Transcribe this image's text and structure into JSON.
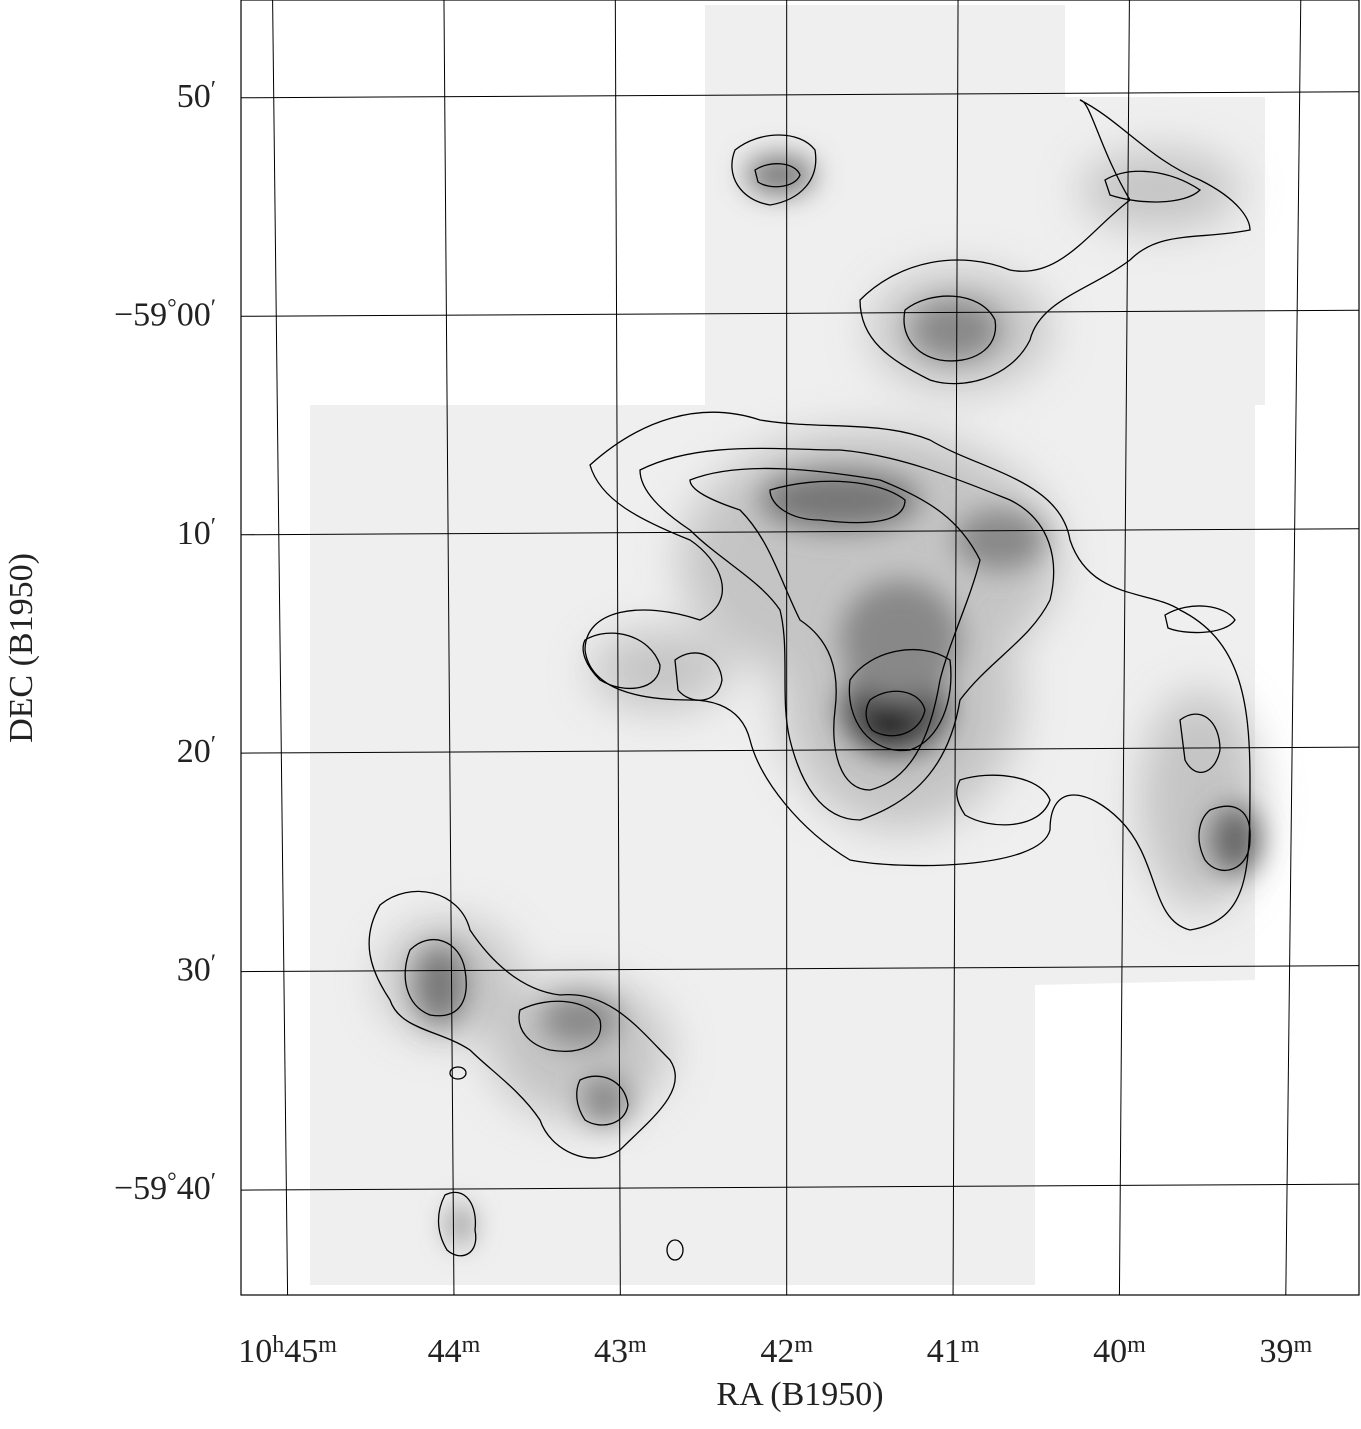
{
  "figure": {
    "x_label": "RA (B1950)",
    "y_label": "DEC (B1950)",
    "xlim": [
      45.28,
      38.56
    ],
    "ylim": [
      -58.761,
      -59.749
    ],
    "xticks": [
      {
        "value": 45,
        "parts": [
          "10",
          "h",
          "45",
          "m"
        ]
      },
      {
        "value": 44,
        "parts": [
          "44",
          "m"
        ]
      },
      {
        "value": 43,
        "parts": [
          "43",
          "m"
        ]
      },
      {
        "value": 42,
        "parts": [
          "42",
          "m"
        ]
      },
      {
        "value": 41,
        "parts": [
          "41",
          "m"
        ]
      },
      {
        "value": 40,
        "parts": [
          "40",
          "m"
        ]
      },
      {
        "value": 39,
        "parts": [
          "39",
          "m"
        ]
      }
    ],
    "yticks": [
      {
        "value": -58.8333,
        "parts": [
          "50",
          "′"
        ]
      },
      {
        "value": -59.0,
        "parts": [
          "−59",
          "°",
          "00",
          "′"
        ]
      },
      {
        "value": -59.1667,
        "parts": [
          "10",
          "′"
        ]
      },
      {
        "value": -59.3333,
        "parts": [
          "20",
          "′"
        ]
      },
      {
        "value": -59.5,
        "parts": [
          "30",
          "′"
        ]
      },
      {
        "value": -59.6667,
        "parts": [
          "−59",
          "°",
          "40",
          "′"
        ]
      }
    ]
  }
}
